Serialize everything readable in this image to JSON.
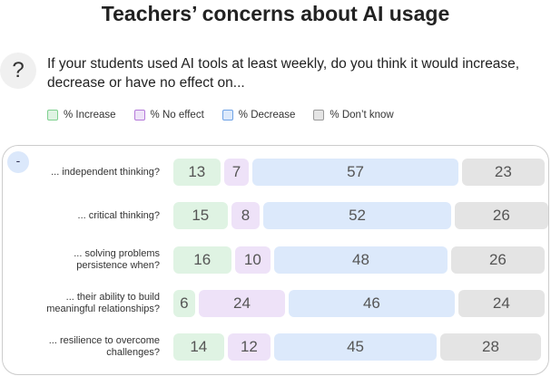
{
  "chart_data": {
    "type": "stacked-bar-horizontal",
    "title": "Teachers’ concerns about AI usage",
    "help_icon": "?",
    "question": "If your students used AI tools at least weekly, do you think it would increase, decrease or have no effect on...",
    "collapse_button": "-",
    "categories": [
      "... independent thinking?",
      "... critical thinking?",
      "... solving problems\npersistence when?",
      "... their ability to build\nmeaningful relationships?",
      "... resilience to overcome\nchallenges?"
    ],
    "series": [
      {
        "name": "% Increase",
        "color": "#dff3e3",
        "border": "#7fd08f",
        "values": [
          13,
          15,
          16,
          6,
          14
        ]
      },
      {
        "name": "% No effect",
        "color": "#eee2f8",
        "border": "#b57ad9",
        "values": [
          7,
          8,
          10,
          24,
          12
        ]
      },
      {
        "name": "% Decrease",
        "color": "#dce9fb",
        "border": "#6fa3e6",
        "values": [
          57,
          52,
          48,
          46,
          45
        ]
      },
      {
        "name": "% Don’t know",
        "color": "#e4e4e4",
        "border": "#9a9a9a",
        "values": [
          23,
          26,
          26,
          24,
          28
        ]
      }
    ],
    "legend": "top-left"
  }
}
